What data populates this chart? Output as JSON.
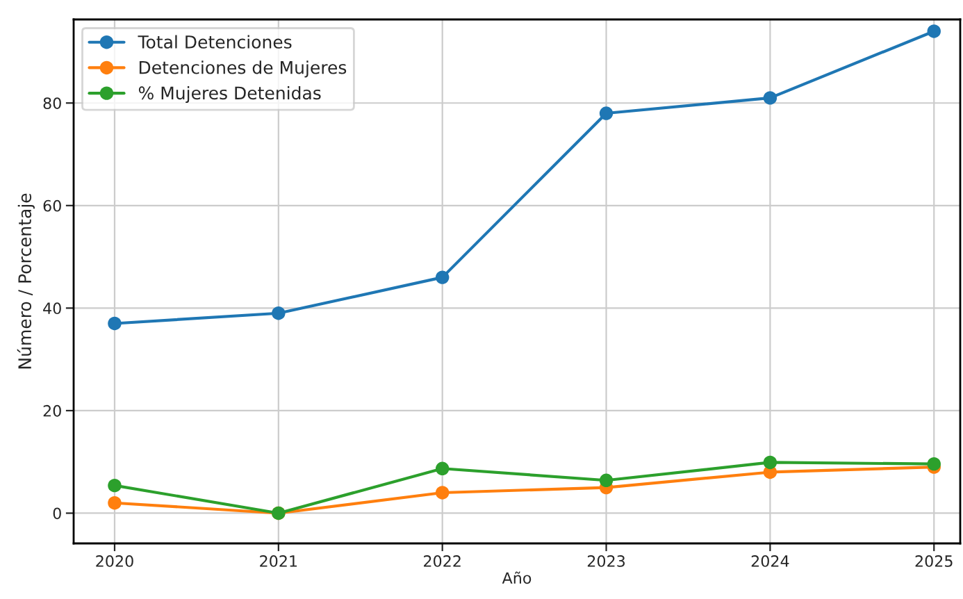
{
  "chart_data": {
    "type": "line",
    "xlabel": "Año",
    "ylabel": "Número / Porcentaje",
    "x": [
      2020,
      2021,
      2022,
      2023,
      2024,
      2025
    ],
    "series": [
      {
        "name": "Total Detenciones",
        "color": "#1f77b4",
        "values": [
          37,
          39,
          46,
          78,
          81,
          94
        ]
      },
      {
        "name": "Detenciones de Mujeres",
        "color": "#ff7f0e",
        "values": [
          2,
          0,
          4,
          5,
          8,
          9
        ]
      },
      {
        "name": "% Mujeres Detenidas",
        "color": "#2ca02c",
        "values": [
          5.4,
          0,
          8.7,
          6.4,
          9.9,
          9.6
        ]
      }
    ],
    "xlim": [
      2019.75,
      2025.16
    ],
    "ylim": [
      -5.9,
      96.3
    ],
    "xticks": [
      2020,
      2021,
      2022,
      2023,
      2024,
      2025
    ],
    "yticks": [
      0,
      20,
      40,
      60,
      80
    ],
    "grid": true,
    "legend": "top left",
    "marker": "circle",
    "line_style": "solid"
  }
}
